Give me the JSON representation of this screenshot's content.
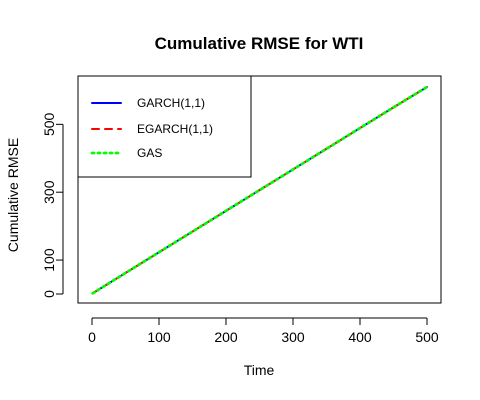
{
  "chart_data": {
    "type": "line",
    "title": "Cumulative RMSE for WTI",
    "xlabel": "Time",
    "ylabel": "Cumulative RMSE",
    "xlim": [
      0,
      500
    ],
    "ylim": [
      0,
      610
    ],
    "x_ticks": [
      0,
      100,
      200,
      300,
      400,
      500
    ],
    "y_ticks": [
      0,
      100,
      300,
      500
    ],
    "legend_position": "top-left",
    "series": [
      {
        "name": "GARCH(1,1)",
        "color": "#0000ff",
        "line_style": "solid",
        "x": [
          1,
          50,
          100,
          150,
          200,
          250,
          300,
          350,
          400,
          450,
          500
        ],
        "values": [
          2,
          62,
          123,
          184,
          245,
          306,
          367,
          428,
          489,
          550,
          610
        ]
      },
      {
        "name": "EGARCH(1,1)",
        "color": "#ff0000",
        "line_style": "dashed",
        "x": [
          1,
          50,
          100,
          150,
          200,
          250,
          300,
          350,
          400,
          450,
          500
        ],
        "values": [
          2,
          62,
          123,
          184,
          245,
          306,
          367,
          428,
          489,
          550,
          610
        ]
      },
      {
        "name": "GAS",
        "color": "#00ff00",
        "line_style": "dotted",
        "x": [
          1,
          50,
          100,
          150,
          200,
          250,
          300,
          350,
          400,
          450,
          500
        ],
        "values": [
          2,
          62,
          123,
          184,
          245,
          306,
          367,
          428,
          489,
          550,
          610
        ]
      }
    ]
  }
}
